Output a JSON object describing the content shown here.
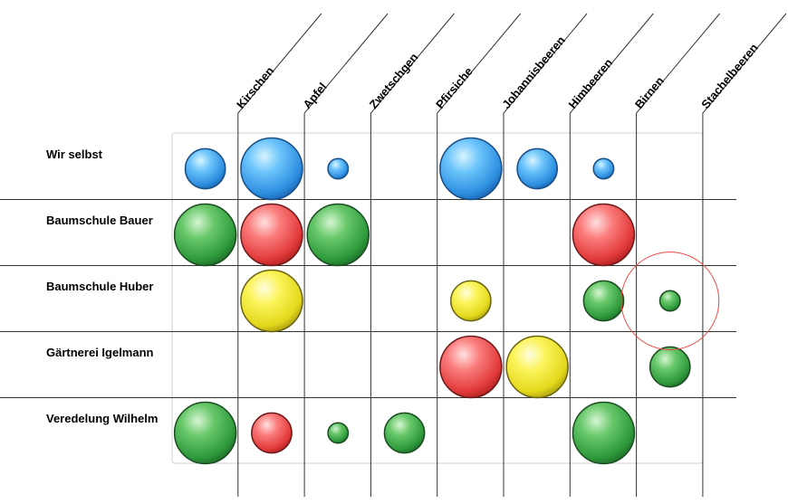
{
  "chart_data": {
    "type": "bubble-matrix",
    "columns": [
      "Kirschen",
      "Apfel",
      "Zwetschgen",
      "Pfirsiche",
      "Johannisbeeren",
      "Himbeeren",
      "Birnen",
      "Stachelbeeren"
    ],
    "rows": [
      "Wir selbst",
      "Baumschule Bauer",
      "Baumschule Huber",
      "Gärtnerei Igelmann",
      "Veredelung Wilhelm"
    ],
    "colors": {
      "blue": "#3aa0f0",
      "green": "#33b04a",
      "red": "#f04848",
      "yellow": "#f2ea22",
      "highlight": "#f04848"
    },
    "cells": [
      {
        "row": 0,
        "col": 0,
        "size": 0.65,
        "color": "blue"
      },
      {
        "row": 0,
        "col": 1,
        "size": 1.0,
        "color": "blue"
      },
      {
        "row": 0,
        "col": 2,
        "size": 0.33,
        "color": "blue"
      },
      {
        "row": 0,
        "col": 4,
        "size": 1.0,
        "color": "blue"
      },
      {
        "row": 0,
        "col": 5,
        "size": 0.65,
        "color": "blue"
      },
      {
        "row": 0,
        "col": 6,
        "size": 0.33,
        "color": "blue"
      },
      {
        "row": 1,
        "col": 0,
        "size": 1.0,
        "color": "green"
      },
      {
        "row": 1,
        "col": 1,
        "size": 1.0,
        "color": "red"
      },
      {
        "row": 1,
        "col": 2,
        "size": 1.0,
        "color": "green"
      },
      {
        "row": 1,
        "col": 6,
        "size": 1.0,
        "color": "red"
      },
      {
        "row": 2,
        "col": 1,
        "size": 1.0,
        "color": "yellow"
      },
      {
        "row": 2,
        "col": 4,
        "size": 0.65,
        "color": "yellow"
      },
      {
        "row": 2,
        "col": 6,
        "size": 0.65,
        "color": "green"
      },
      {
        "row": 2,
        "col": 7,
        "size": 0.33,
        "color": "green",
        "highlight": true
      },
      {
        "row": 3,
        "col": 4,
        "size": 1.0,
        "color": "red"
      },
      {
        "row": 3,
        "col": 5,
        "size": 1.0,
        "color": "yellow"
      },
      {
        "row": 3,
        "col": 7,
        "size": 0.65,
        "color": "green"
      },
      {
        "row": 4,
        "col": 0,
        "size": 1.0,
        "color": "green"
      },
      {
        "row": 4,
        "col": 1,
        "size": 0.65,
        "color": "red"
      },
      {
        "row": 4,
        "col": 2,
        "size": 0.33,
        "color": "green"
      },
      {
        "row": 4,
        "col": 3,
        "size": 0.65,
        "color": "green"
      },
      {
        "row": 4,
        "col": 6,
        "size": 1.0,
        "color": "green"
      }
    ]
  }
}
